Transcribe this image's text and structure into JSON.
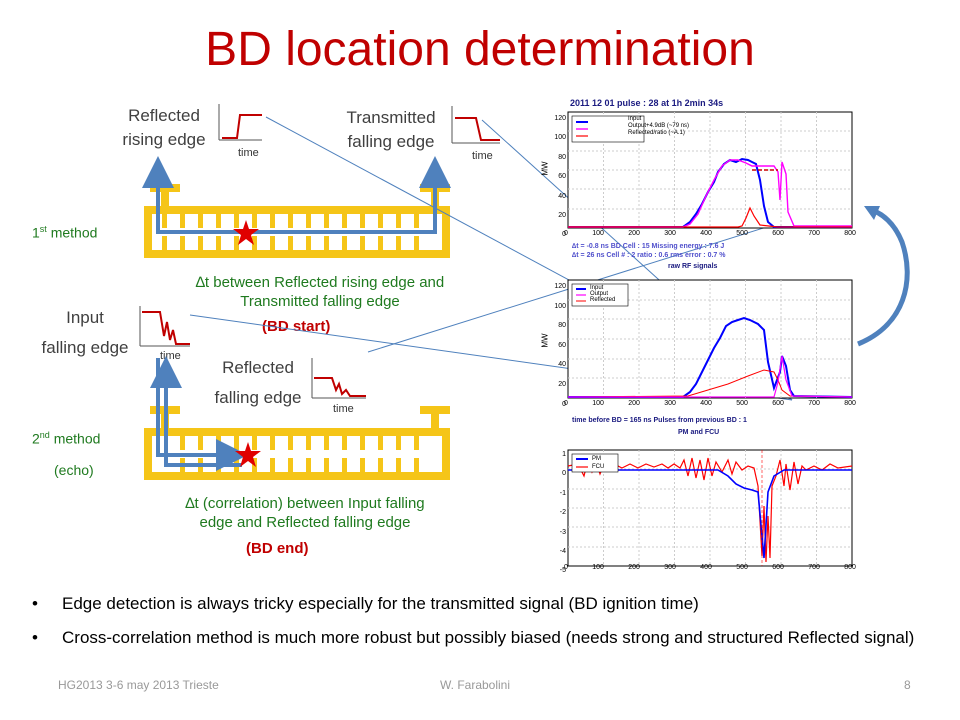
{
  "title": "BD location determination",
  "method1": {
    "label": "1st method",
    "reflected_label_1": "Reflected",
    "reflected_label_2": "rising edge",
    "transmitted_label_1": "Transmitted",
    "transmitted_label_2": "falling edge",
    "time": "time",
    "desc_1": "∆t between Reflected rising edge and",
    "desc_2": "Transmitted falling edge",
    "note": "(BD start)"
  },
  "method2": {
    "label": "2nd method",
    "label_sub": "(echo)",
    "input_label_1": "Input",
    "input_label_2": "falling edge",
    "reflected_label_1": "Reflected",
    "reflected_label_2": "falling edge",
    "time": "time",
    "desc_1": "∆t (correlation) between Input falling",
    "desc_2": "edge and Reflected falling edge",
    "note": "(BD end)"
  },
  "plots": {
    "plot1": {
      "header": "2011 12 01     pulse : 28     at 1h 2min 34s",
      "ylabel": "MW",
      "yticks": [
        "120",
        "100",
        "80",
        "60",
        "40",
        "20",
        "0"
      ],
      "xticks": [
        "0",
        "100",
        "200",
        "300",
        "400",
        "500",
        "600",
        "700",
        "800"
      ],
      "legend": [
        "Input",
        "Output+4.9dB (~79 ns)",
        "Reflected/ratio (~A.1)"
      ],
      "info_1": "∆t = -0.8 ns   BD Cell : 15   Missing energy : 7.6 J",
      "info_2": "∆t = 26 ns    Cell # : 2   ratio : 0.6    rms error : 0.7 %",
      "caption": "raw RF signals"
    },
    "plot2": {
      "ylabel": "MW",
      "yticks": [
        "120",
        "100",
        "80",
        "60",
        "40",
        "20",
        "0"
      ],
      "xticks": [
        "0",
        "100",
        "200",
        "300",
        "400",
        "500",
        "600",
        "700",
        "800"
      ],
      "legend": [
        "Input",
        "Output",
        "Reflected"
      ],
      "info": "time before BD = 165 ns     Pulses from previous BD : 1",
      "caption": "PM and FCU"
    },
    "plot3": {
      "yticks": [
        "1",
        "0",
        "-1",
        "-2",
        "-3",
        "-4",
        "-5"
      ],
      "xticks": [
        "0",
        "100",
        "200",
        "300",
        "400",
        "500",
        "600",
        "700",
        "800"
      ],
      "legend": [
        "PM",
        "FCU"
      ]
    }
  },
  "bullets": [
    "Edge detection is always tricky especially for the transmitted signal (BD ignition time)",
    "Cross-correlation method is much more robust but possibly biased (needs strong and structured Reflected signal)"
  ],
  "footer": {
    "left": "HG2013 3-6 may 2013 Trieste",
    "center": "W. Farabolini",
    "page": "8"
  },
  "colors": {
    "title": "#c00000",
    "structure": "#f5c518",
    "arrow": "#4f81bd",
    "input": "#0000ff",
    "reflected": "#ff0000",
    "output": "#ff00ff"
  }
}
